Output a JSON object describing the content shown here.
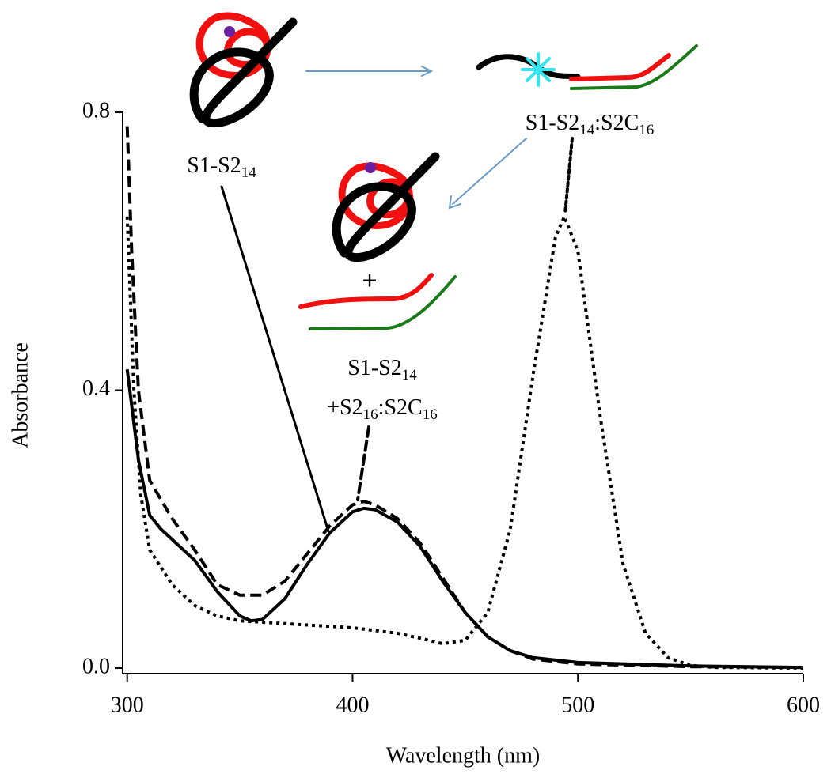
{
  "chart_data": {
    "type": "line",
    "x_label": "Wavelength (nm)",
    "y_label": "Absorbance",
    "xlim": [
      298,
      600
    ],
    "xticks": [
      300,
      400,
      500,
      600
    ],
    "ylim": [
      -0.008,
      0.8
    ],
    "yticks": [
      {
        "value": 0,
        "label": "0.0"
      },
      0.4,
      0.8
    ],
    "annotations": [
      "+"
    ],
    "series": [
      {
        "name": [
          [
            "S1-S2",
            "14"
          ]
        ],
        "color": "#000000",
        "style": "solid",
        "x": [
          300,
          305,
          310,
          315,
          320,
          330,
          340,
          350,
          355,
          360,
          370,
          380,
          390,
          400,
          405,
          410,
          420,
          430,
          440,
          450,
          460,
          470,
          480,
          500,
          550,
          600
        ],
        "values": [
          0.43,
          0.3,
          0.22,
          0.2,
          0.185,
          0.155,
          0.11,
          0.075,
          0.068,
          0.07,
          0.1,
          0.15,
          0.195,
          0.225,
          0.23,
          0.228,
          0.21,
          0.175,
          0.125,
          0.08,
          0.045,
          0.025,
          0.015,
          0.008,
          0.003,
          0.001
        ]
      },
      {
        "name": [
          [
            "S1-S2",
            "14"
          ],
          [
            "+S2",
            "16",
            ":S2C",
            "16"
          ]
        ],
        "color": "#000000",
        "style": "dashed",
        "x": [
          300,
          302,
          305,
          310,
          320,
          330,
          340,
          350,
          360,
          370,
          380,
          390,
          400,
          405,
          410,
          420,
          430,
          440,
          450,
          460,
          470,
          480,
          500,
          550,
          600
        ],
        "values": [
          0.78,
          0.6,
          0.4,
          0.27,
          0.215,
          0.17,
          0.12,
          0.105,
          0.105,
          0.125,
          0.165,
          0.205,
          0.235,
          0.24,
          0.235,
          0.215,
          0.18,
          0.13,
          0.08,
          0.045,
          0.025,
          0.013,
          0.006,
          0.002,
          0.001
        ]
      },
      {
        "name": [
          [
            "S1-S2",
            "14",
            ":S2C",
            "16"
          ]
        ],
        "color": "#000000",
        "style": "dotted",
        "x": [
          300,
          303,
          306,
          310,
          320,
          330,
          340,
          350,
          360,
          380,
          400,
          420,
          430,
          440,
          450,
          460,
          470,
          480,
          490,
          494,
          500,
          510,
          520,
          530,
          540,
          550,
          560,
          600
        ],
        "values": [
          0.65,
          0.4,
          0.25,
          0.17,
          0.12,
          0.09,
          0.075,
          0.068,
          0.066,
          0.062,
          0.058,
          0.05,
          0.043,
          0.035,
          0.04,
          0.08,
          0.2,
          0.42,
          0.62,
          0.65,
          0.6,
          0.36,
          0.15,
          0.05,
          0.015,
          0.004,
          0.001,
          0
        ]
      }
    ]
  }
}
